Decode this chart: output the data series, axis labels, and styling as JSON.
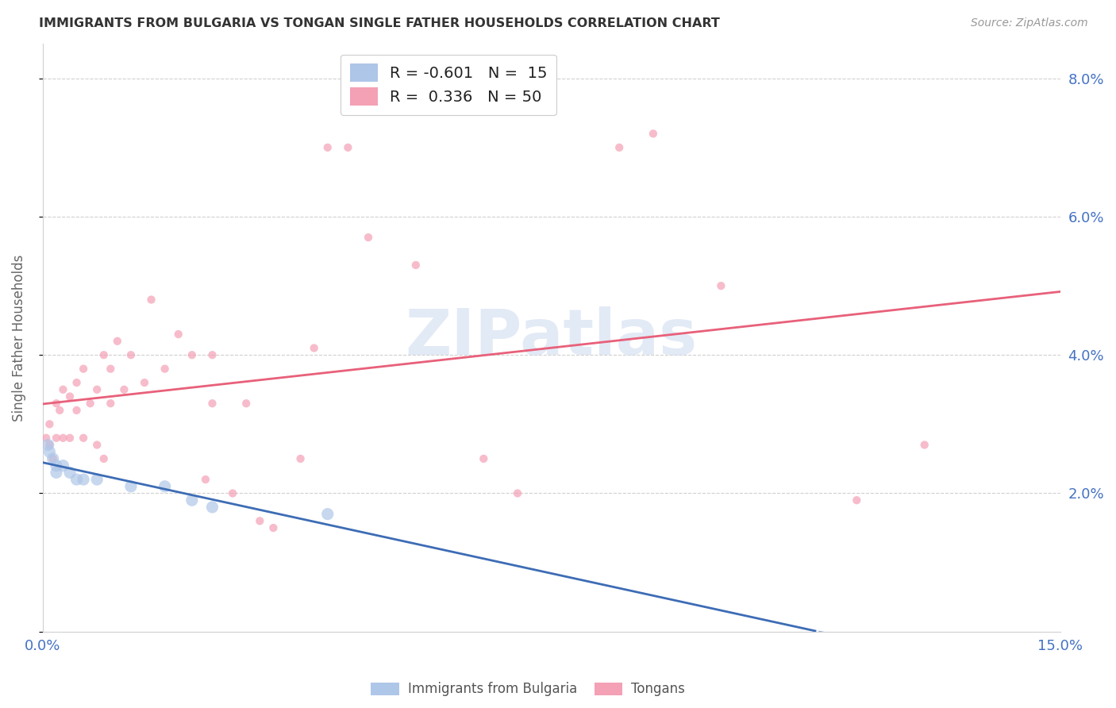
{
  "title": "IMMIGRANTS FROM BULGARIA VS TONGAN SINGLE FATHER HOUSEHOLDS CORRELATION CHART",
  "source": "Source: ZipAtlas.com",
  "ylabel": "Single Father Households",
  "xlim": [
    0.0,
    0.15
  ],
  "ylim": [
    0.0,
    0.085
  ],
  "yticks": [
    0.0,
    0.02,
    0.04,
    0.06,
    0.08
  ],
  "ytick_labels": [
    "",
    "2.0%",
    "4.0%",
    "6.0%",
    "8.0%"
  ],
  "xticks": [
    0.0,
    0.05,
    0.1,
    0.15
  ],
  "xtick_labels": [
    "0.0%",
    "",
    "",
    "15.0%"
  ],
  "watermark": "ZIPatlas",
  "legend_line1": "R = -0.601   N =  15",
  "legend_line2": "R =  0.336   N = 50",
  "legend_label1": "Immigrants from Bulgaria",
  "legend_label2": "Tongans",
  "bulgaria_x": [
    0.0008,
    0.001,
    0.0015,
    0.002,
    0.002,
    0.003,
    0.004,
    0.005,
    0.006,
    0.008,
    0.013,
    0.018,
    0.022,
    0.025,
    0.042
  ],
  "bulgaria_y": [
    0.027,
    0.026,
    0.025,
    0.024,
    0.023,
    0.024,
    0.023,
    0.022,
    0.022,
    0.022,
    0.021,
    0.021,
    0.019,
    0.018,
    0.017
  ],
  "tongan_x": [
    0.0005,
    0.001,
    0.001,
    0.0015,
    0.002,
    0.002,
    0.0025,
    0.003,
    0.003,
    0.004,
    0.004,
    0.005,
    0.005,
    0.006,
    0.006,
    0.007,
    0.008,
    0.008,
    0.009,
    0.009,
    0.01,
    0.01,
    0.011,
    0.012,
    0.013,
    0.015,
    0.016,
    0.018,
    0.02,
    0.022,
    0.024,
    0.025,
    0.025,
    0.028,
    0.03,
    0.032,
    0.034,
    0.038,
    0.04,
    0.042,
    0.045,
    0.048,
    0.055,
    0.065,
    0.07,
    0.085,
    0.09,
    0.1,
    0.12,
    0.13
  ],
  "tongan_y": [
    0.028,
    0.03,
    0.027,
    0.025,
    0.033,
    0.028,
    0.032,
    0.035,
    0.028,
    0.034,
    0.028,
    0.032,
    0.036,
    0.038,
    0.028,
    0.033,
    0.035,
    0.027,
    0.04,
    0.025,
    0.038,
    0.033,
    0.042,
    0.035,
    0.04,
    0.036,
    0.048,
    0.038,
    0.043,
    0.04,
    0.022,
    0.04,
    0.033,
    0.02,
    0.033,
    0.016,
    0.015,
    0.025,
    0.041,
    0.07,
    0.07,
    0.057,
    0.053,
    0.025,
    0.02,
    0.07,
    0.072,
    0.05,
    0.019,
    0.027
  ],
  "bg_color": "#ffffff",
  "bulgaria_color": "#aec6e8",
  "tongan_color": "#f4a0b5",
  "bulgaria_line_color": "#3d6cb5",
  "tongan_line_color": "#e8607a",
  "grid_color": "#d0d0d0",
  "title_color": "#333333",
  "ylabel_color": "#666666",
  "tick_label_color": "#4472c4",
  "source_color": "#999999",
  "watermark_color": "#d0ddf0",
  "point_size_bulgaria": 120,
  "point_size_tongan": 55,
  "scatter_alpha": 0.7,
  "line_width": 2.0
}
